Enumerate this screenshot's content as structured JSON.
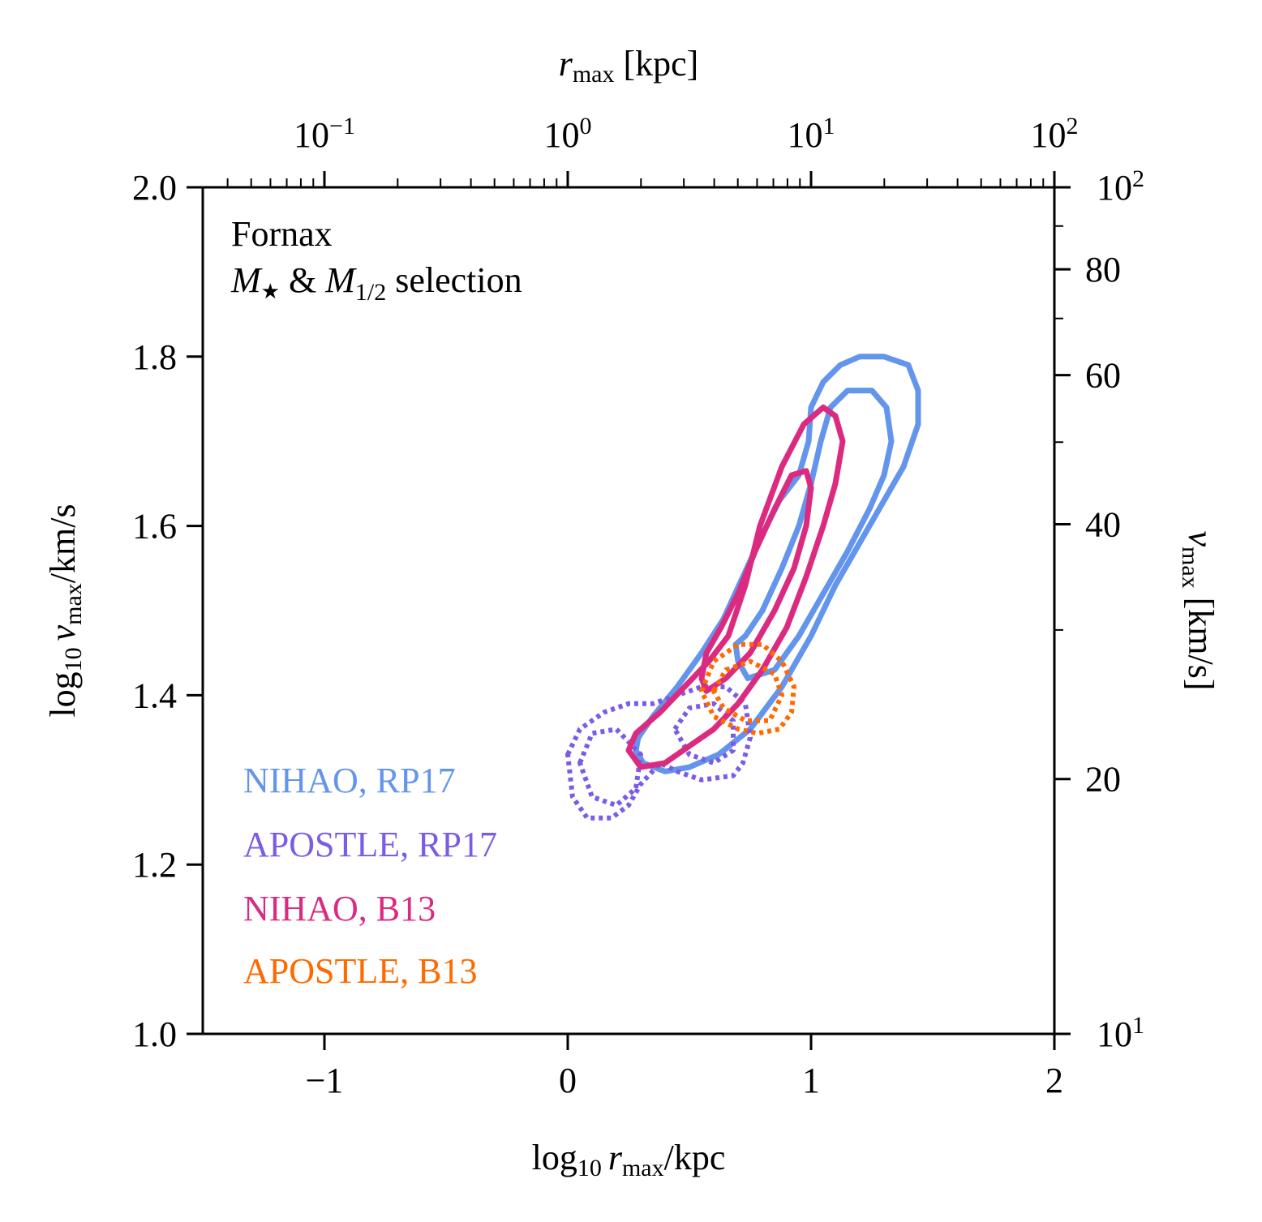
{
  "chart_data": {
    "type": "contour",
    "title": "",
    "annotation": {
      "line1": "Fornax",
      "line2_m": "M",
      "line2_star": "★",
      "line2_amp": " & ",
      "line2_m2": "M",
      "line2_sub": "1/2",
      "line2_rest": " selection"
    },
    "xaxis": {
      "label_log": "log",
      "label_log_sub": "10",
      "label_var": "r",
      "label_var_sub": "max",
      "label_unit": "/kpc",
      "range": [
        -1.5,
        2.0
      ],
      "ticks": [
        -1,
        0,
        1,
        2
      ],
      "tick_labels": [
        "−1",
        "0",
        "1",
        "2"
      ]
    },
    "yaxis": {
      "label_log": "log",
      "label_log_sub": "10",
      "label_var": "v",
      "label_var_sub": "max",
      "label_unit": "/km/s",
      "range": [
        1.0,
        2.0
      ],
      "ticks": [
        1.0,
        1.2,
        1.4,
        1.6,
        1.8,
        2.0
      ],
      "tick_labels": [
        "1.0",
        "1.2",
        "1.4",
        "1.6",
        "1.8",
        "2.0"
      ]
    },
    "top_axis": {
      "label_var": "r",
      "label_var_sub": "max",
      "label_unit": " [kpc]",
      "major_exponents": [
        -1,
        0,
        1,
        2
      ],
      "tick_labels": [
        {
          "base": "10",
          "exp": "−1"
        },
        {
          "base": "10",
          "exp": "0"
        },
        {
          "base": "10",
          "exp": "1"
        },
        {
          "base": "10",
          "exp": "2"
        }
      ]
    },
    "right_axis": {
      "label_var": "v",
      "label_var_sub": "max",
      "label_unit": " [km/s]",
      "labeled_ticks": [
        {
          "value": 100,
          "base": "10",
          "exp": "2"
        },
        {
          "value": 80,
          "text": "80"
        },
        {
          "value": 60,
          "text": "60"
        },
        {
          "value": 40,
          "text": "40"
        },
        {
          "value": 20,
          "text": "20"
        },
        {
          "value": 10,
          "base": "10",
          "exp": "1"
        }
      ],
      "minor_ticks": [
        90,
        70,
        50,
        30
      ]
    },
    "series": [
      {
        "name": "NIHAO, RP17",
        "color": "#6495ED",
        "style": "solid",
        "contours": [
          [
            [
              0.28,
              1.335
            ],
            [
              0.31,
              1.32
            ],
            [
              0.4,
              1.31
            ],
            [
              0.5,
              1.315
            ],
            [
              0.62,
              1.33
            ],
            [
              0.75,
              1.36
            ],
            [
              0.88,
              1.41
            ],
            [
              1.0,
              1.47
            ],
            [
              1.1,
              1.53
            ],
            [
              1.2,
              1.58
            ],
            [
              1.3,
              1.63
            ],
            [
              1.38,
              1.67
            ],
            [
              1.44,
              1.72
            ],
            [
              1.44,
              1.76
            ],
            [
              1.4,
              1.79
            ],
            [
              1.3,
              1.8
            ],
            [
              1.2,
              1.8
            ],
            [
              1.12,
              1.79
            ],
            [
              1.05,
              1.77
            ],
            [
              1.0,
              1.74
            ],
            [
              0.99,
              1.7
            ],
            [
              0.95,
              1.66
            ],
            [
              0.87,
              1.63
            ],
            [
              0.8,
              1.59
            ],
            [
              0.72,
              1.54
            ],
            [
              0.64,
              1.49
            ],
            [
              0.55,
              1.45
            ],
            [
              0.45,
              1.41
            ],
            [
              0.35,
              1.375
            ],
            [
              0.29,
              1.35
            ],
            [
              0.28,
              1.335
            ]
          ],
          [
            [
              0.69,
              1.46
            ],
            [
              0.7,
              1.44
            ],
            [
              0.74,
              1.42
            ],
            [
              0.85,
              1.43
            ],
            [
              0.95,
              1.47
            ],
            [
              1.05,
              1.52
            ],
            [
              1.15,
              1.57
            ],
            [
              1.24,
              1.62
            ],
            [
              1.3,
              1.66
            ],
            [
              1.33,
              1.7
            ],
            [
              1.31,
              1.74
            ],
            [
              1.25,
              1.76
            ],
            [
              1.15,
              1.76
            ],
            [
              1.08,
              1.74
            ],
            [
              1.04,
              1.7
            ],
            [
              1.0,
              1.65
            ],
            [
              0.95,
              1.6
            ],
            [
              0.88,
              1.55
            ],
            [
              0.8,
              1.5
            ],
            [
              0.73,
              1.47
            ],
            [
              0.69,
              1.46
            ]
          ]
        ]
      },
      {
        "name": "APOSTLE, RP17",
        "color": "#7B5CE6",
        "style": "dotted",
        "contours": [
          [
            [
              0.0,
              1.33
            ],
            [
              0.05,
              1.36
            ],
            [
              0.15,
              1.38
            ],
            [
              0.25,
              1.39
            ],
            [
              0.35,
              1.39
            ],
            [
              0.45,
              1.4
            ],
            [
              0.55,
              1.41
            ],
            [
              0.65,
              1.41
            ],
            [
              0.73,
              1.39
            ],
            [
              0.75,
              1.35
            ],
            [
              0.72,
              1.32
            ],
            [
              0.68,
              1.305
            ],
            [
              0.55,
              1.3
            ],
            [
              0.45,
              1.31
            ],
            [
              0.38,
              1.32
            ],
            [
              0.3,
              1.295
            ],
            [
              0.25,
              1.27
            ],
            [
              0.18,
              1.255
            ],
            [
              0.08,
              1.255
            ],
            [
              0.02,
              1.28
            ],
            [
              0.0,
              1.33
            ]
          ],
          [
            [
              0.05,
              1.32
            ],
            [
              0.1,
              1.355
            ],
            [
              0.2,
              1.36
            ],
            [
              0.3,
              1.33
            ],
            [
              0.28,
              1.29
            ],
            [
              0.2,
              1.27
            ],
            [
              0.1,
              1.28
            ],
            [
              0.05,
              1.32
            ]
          ],
          [
            [
              0.44,
              1.36
            ],
            [
              0.5,
              1.385
            ],
            [
              0.6,
              1.39
            ],
            [
              0.68,
              1.37
            ],
            [
              0.68,
              1.335
            ],
            [
              0.6,
              1.32
            ],
            [
              0.5,
              1.33
            ],
            [
              0.44,
              1.36
            ]
          ]
        ]
      },
      {
        "name": "NIHAO, B13",
        "color": "#DB2B80",
        "style": "solid",
        "contours": [
          [
            [
              0.25,
              1.335
            ],
            [
              0.3,
              1.315
            ],
            [
              0.4,
              1.32
            ],
            [
              0.5,
              1.34
            ],
            [
              0.6,
              1.36
            ],
            [
              0.7,
              1.39
            ],
            [
              0.8,
              1.43
            ],
            [
              0.9,
              1.48
            ],
            [
              0.98,
              1.54
            ],
            [
              1.05,
              1.6
            ],
            [
              1.1,
              1.65
            ],
            [
              1.13,
              1.7
            ],
            [
              1.1,
              1.73
            ],
            [
              1.05,
              1.74
            ],
            [
              0.97,
              1.72
            ],
            [
              0.88,
              1.67
            ],
            [
              0.79,
              1.6
            ],
            [
              0.73,
              1.53
            ],
            [
              0.66,
              1.47
            ],
            [
              0.58,
              1.44
            ],
            [
              0.48,
              1.41
            ],
            [
              0.38,
              1.38
            ],
            [
              0.28,
              1.355
            ],
            [
              0.25,
              1.335
            ]
          ],
          [
            [
              0.55,
              1.42
            ],
            [
              0.57,
              1.405
            ],
            [
              0.65,
              1.42
            ],
            [
              0.75,
              1.45
            ],
            [
              0.85,
              1.5
            ],
            [
              0.93,
              1.55
            ],
            [
              0.98,
              1.6
            ],
            [
              1.0,
              1.645
            ],
            [
              0.98,
              1.665
            ],
            [
              0.92,
              1.66
            ],
            [
              0.85,
              1.62
            ],
            [
              0.77,
              1.57
            ],
            [
              0.7,
              1.52
            ],
            [
              0.63,
              1.48
            ],
            [
              0.57,
              1.45
            ],
            [
              0.55,
              1.42
            ]
          ]
        ]
      },
      {
        "name": "APOSTLE, B13",
        "color": "#FF6A00",
        "style": "dotted",
        "contours": [
          [
            [
              0.55,
              1.405
            ],
            [
              0.6,
              1.44
            ],
            [
              0.7,
              1.46
            ],
            [
              0.8,
              1.46
            ],
            [
              0.88,
              1.44
            ],
            [
              0.93,
              1.41
            ],
            [
              0.92,
              1.38
            ],
            [
              0.87,
              1.36
            ],
            [
              0.78,
              1.355
            ],
            [
              0.7,
              1.36
            ],
            [
              0.6,
              1.375
            ],
            [
              0.55,
              1.405
            ]
          ],
          [
            [
              0.6,
              1.405
            ],
            [
              0.65,
              1.43
            ],
            [
              0.75,
              1.44
            ],
            [
              0.85,
              1.425
            ],
            [
              0.88,
              1.4
            ],
            [
              0.83,
              1.37
            ],
            [
              0.73,
              1.37
            ],
            [
              0.64,
              1.385
            ],
            [
              0.6,
              1.405
            ]
          ]
        ]
      }
    ]
  }
}
